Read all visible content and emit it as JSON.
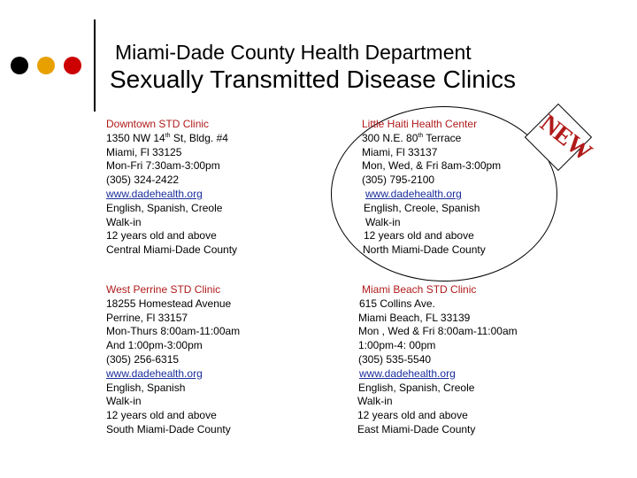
{
  "header": {
    "subtitle": "Miami-Dade County Health Department",
    "title": "Sexually Transmitted Disease Clinics",
    "dot_colors": [
      "#000000",
      "#e8a000",
      "#cc0000"
    ]
  },
  "badge": {
    "text": "NEW"
  },
  "clinics": [
    {
      "name": "Downtown STD Clinic",
      "street_pre": "1350 NW 14",
      "street_sup": "th",
      "street_post": " St, Bldg. #4",
      "city": "Miami, Fl 33125",
      "hours": [
        "Mon-Fri 7:30am-3:00pm"
      ],
      "phone": "(305) 324-2422",
      "website": "www.dadehealth.org",
      "languages": "English, Spanish, Creole",
      "walkin": "Walk-in",
      "age": "12 years old and above",
      "area": "Central Miami-Dade County"
    },
    {
      "name": "Little Haiti Health Center",
      "street_pre": "300 N.E. 80",
      "street_sup": "th",
      "street_post": " Terrace",
      "city": "Miami, Fl 33137",
      "hours": [
        "Mon, Wed, & Fri 8am-3:00pm"
      ],
      "phone": "(305) 795-2100",
      "website": "www.dadehealth.org",
      "languages": "English, Creole, Spanish",
      "walkin": "Walk-in",
      "age": "12 years old and above",
      "area": "North Miami-Dade County"
    },
    {
      "name": "West Perrine STD Clinic",
      "street_pre": "18255 Homestead Avenue",
      "street_sup": "",
      "street_post": "",
      "city": "Perrine, Fl 33157",
      "hours": [
        "Mon-Thurs 8:00am-11:00am",
        "And 1:00pm-3:00pm"
      ],
      "phone": "(305) 256-6315",
      "website": "www.dadehealth.org",
      "languages": "English, Spanish",
      "walkin": "Walk-in",
      "age": "12 years old and above",
      "area": "South Miami-Dade County"
    },
    {
      "name": "Miami Beach STD Clinic",
      "street_pre": "615 Collins Ave.",
      "street_sup": "",
      "street_post": "",
      "city": "Miami Beach, FL 33139",
      "hours": [
        "Mon , Wed & Fri 8:00am-11:00am",
        "1:00pm-4: 00pm"
      ],
      "phone": "(305) 535-5540",
      "website": "www.dadehealth.org",
      "languages": "English, Spanish, Creole",
      "walkin": "Walk-in",
      "age": "12 years old and above",
      "area": "East Miami-Dade County"
    }
  ]
}
